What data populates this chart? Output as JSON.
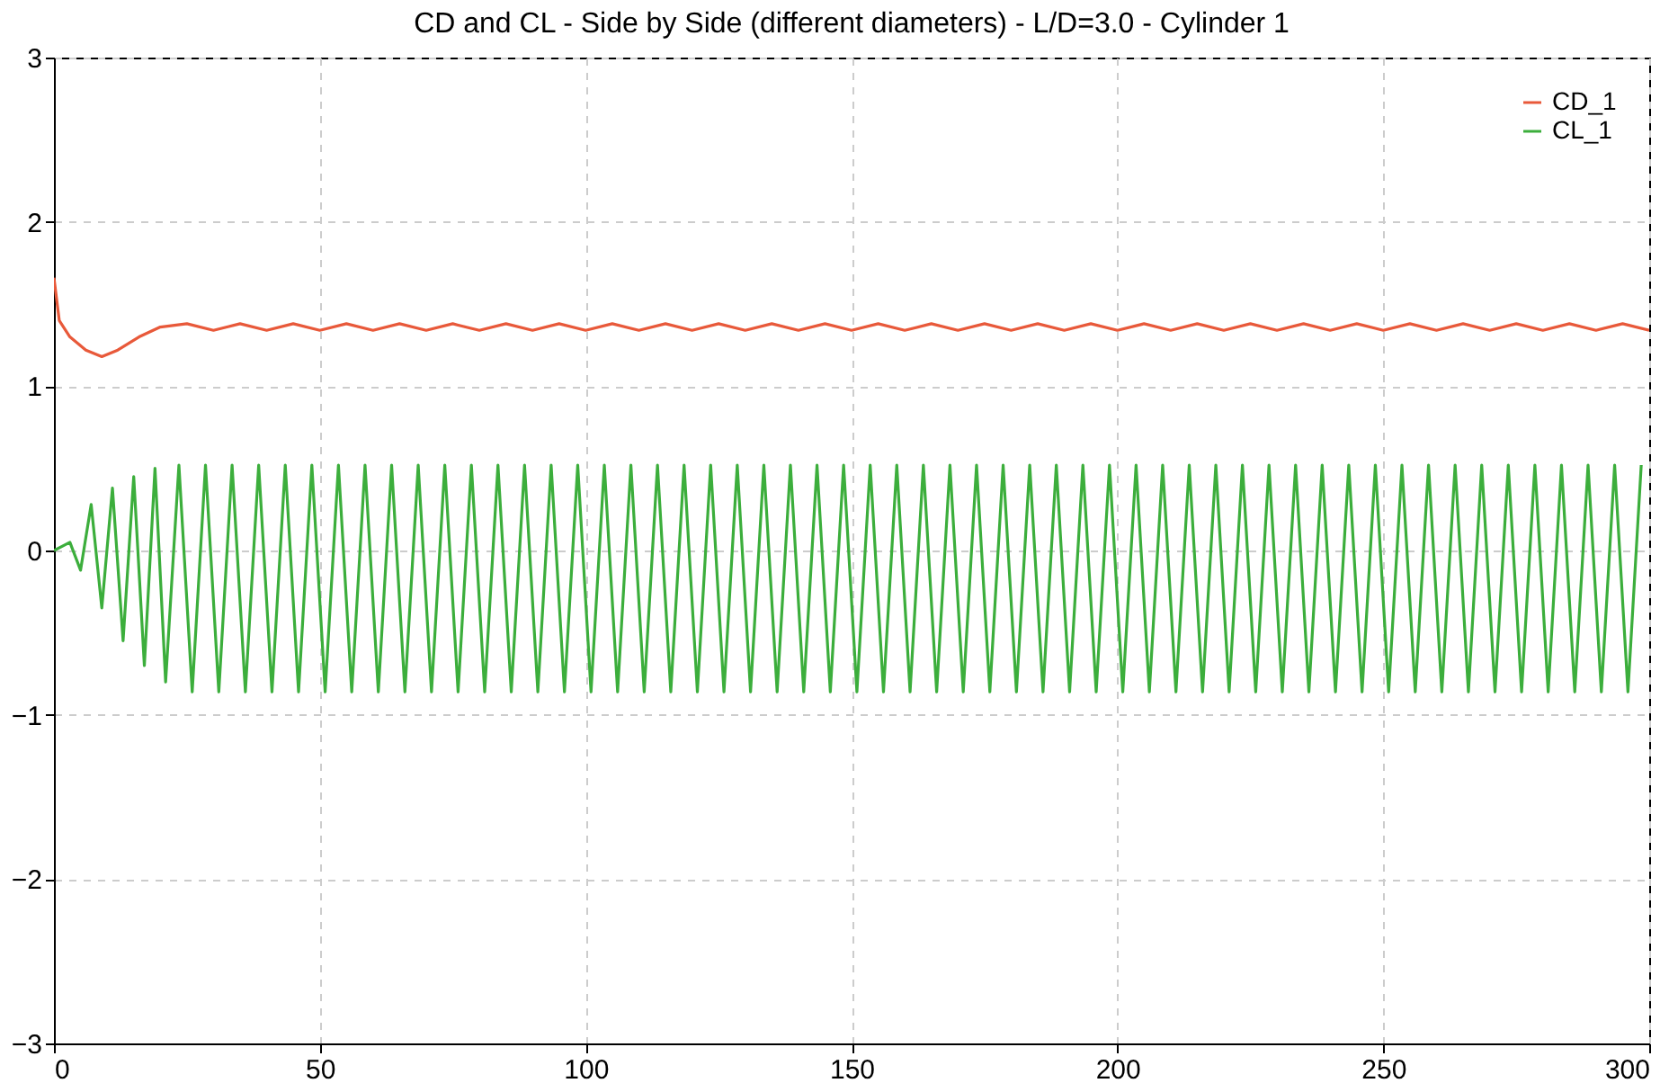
{
  "chart_data": {
    "type": "line",
    "title": "CD and CL - Side by Side (different diameters) - L/D=3.0 - Cylinder 1",
    "xlim": [
      0,
      300
    ],
    "xticks": [
      0,
      50,
      100,
      150,
      200,
      250,
      300
    ],
    "ylim": [
      -3,
      3
    ],
    "yticks": [
      -3,
      -2,
      -1,
      0,
      1,
      2,
      3
    ],
    "grid": true,
    "legend": "top right",
    "marker": "none",
    "line_style": "solid",
    "series": [
      {
        "name": "CD_1",
        "color": "#e8593a",
        "x": [
          0,
          1,
          3,
          6,
          9,
          12,
          16,
          20,
          25,
          30,
          35,
          40,
          45,
          50,
          55,
          60,
          65,
          70,
          75,
          80,
          85,
          90,
          95,
          100,
          105,
          110,
          115,
          120,
          125,
          130,
          135,
          140,
          145,
          150,
          155,
          160,
          165,
          170,
          175,
          180,
          185,
          190,
          195,
          200,
          205,
          210,
          215,
          220,
          225,
          230,
          235,
          240,
          245,
          250,
          255,
          260,
          265,
          270,
          275,
          280,
          285,
          290,
          295,
          300
        ],
        "values": [
          1.66,
          1.4,
          1.3,
          1.22,
          1.18,
          1.22,
          1.3,
          1.36,
          1.38,
          1.34,
          1.38,
          1.34,
          1.38,
          1.34,
          1.38,
          1.34,
          1.38,
          1.34,
          1.38,
          1.34,
          1.38,
          1.34,
          1.38,
          1.34,
          1.38,
          1.34,
          1.38,
          1.34,
          1.38,
          1.34,
          1.38,
          1.34,
          1.38,
          1.34,
          1.38,
          1.34,
          1.38,
          1.34,
          1.38,
          1.34,
          1.38,
          1.34,
          1.38,
          1.34,
          1.38,
          1.34,
          1.38,
          1.34,
          1.38,
          1.34,
          1.38,
          1.34,
          1.38,
          1.34,
          1.38,
          1.34,
          1.38,
          1.34,
          1.38,
          1.34,
          1.38,
          1.34,
          1.38,
          1.34
        ]
      },
      {
        "name": "CL_1",
        "color": "#3cae3c",
        "x": [
          0,
          3,
          5,
          7,
          9,
          11,
          13,
          15,
          17,
          19,
          21,
          23.5,
          26,
          28.5,
          31,
          33.5,
          36,
          38.5,
          41,
          43.5,
          46,
          48.5,
          51,
          53.5,
          56,
          58.5,
          61,
          63.5,
          66,
          68.5,
          71,
          73.5,
          76,
          78.5,
          81,
          83.5,
          86,
          88.5,
          91,
          93.5,
          96,
          98.5,
          101,
          103.5,
          106,
          108.5,
          111,
          113.5,
          116,
          118.5,
          121,
          123.5,
          126,
          128.5,
          131,
          133.5,
          136,
          138.5,
          141,
          143.5,
          146,
          148.5,
          151,
          153.5,
          156,
          158.5,
          161,
          163.5,
          166,
          168.5,
          171,
          173.5,
          176,
          178.5,
          181,
          183.5,
          186,
          188.5,
          191,
          193.5,
          196,
          198.5,
          201,
          203.5,
          206,
          208.5,
          211,
          213.5,
          216,
          218.5,
          221,
          223.5,
          226,
          228.5,
          231,
          233.5,
          236,
          238.5,
          241,
          243.5,
          246,
          248.5,
          251,
          253.5,
          256,
          258.5,
          261,
          263.5,
          266,
          268.5,
          271,
          273.5,
          276,
          278.5,
          281,
          283.5,
          286,
          288.5,
          291,
          293.5,
          296,
          298.5
        ],
        "values": [
          0.0,
          0.05,
          -0.12,
          0.28,
          -0.35,
          0.38,
          -0.55,
          0.45,
          -0.7,
          0.5,
          -0.8,
          0.52,
          -0.86,
          0.52,
          -0.86,
          0.52,
          -0.86,
          0.52,
          -0.86,
          0.52,
          -0.86,
          0.52,
          -0.86,
          0.52,
          -0.86,
          0.52,
          -0.86,
          0.52,
          -0.86,
          0.52,
          -0.86,
          0.52,
          -0.86,
          0.52,
          -0.86,
          0.52,
          -0.86,
          0.52,
          -0.86,
          0.52,
          -0.86,
          0.52,
          -0.86,
          0.52,
          -0.86,
          0.52,
          -0.86,
          0.52,
          -0.86,
          0.52,
          -0.86,
          0.52,
          -0.86,
          0.52,
          -0.86,
          0.52,
          -0.86,
          0.52,
          -0.86,
          0.52,
          -0.86,
          0.52,
          -0.86,
          0.52,
          -0.86,
          0.52,
          -0.86,
          0.52,
          -0.86,
          0.52,
          -0.86,
          0.52,
          -0.86,
          0.52,
          -0.86,
          0.52,
          -0.86,
          0.52,
          -0.86,
          0.52,
          -0.86,
          0.52,
          -0.86,
          0.52,
          -0.86,
          0.52,
          -0.86,
          0.52,
          -0.86,
          0.52,
          -0.86,
          0.52,
          -0.86,
          0.52,
          -0.86,
          0.52,
          -0.86,
          0.52,
          -0.86,
          0.52,
          -0.86,
          0.52,
          -0.86,
          0.52,
          -0.86,
          0.52,
          -0.86,
          0.52,
          -0.86,
          0.52,
          -0.86,
          0.52,
          -0.86,
          0.52,
          -0.86,
          0.52,
          -0.86,
          0.52,
          -0.86,
          0.52,
          -0.86,
          0.52
        ]
      }
    ]
  }
}
